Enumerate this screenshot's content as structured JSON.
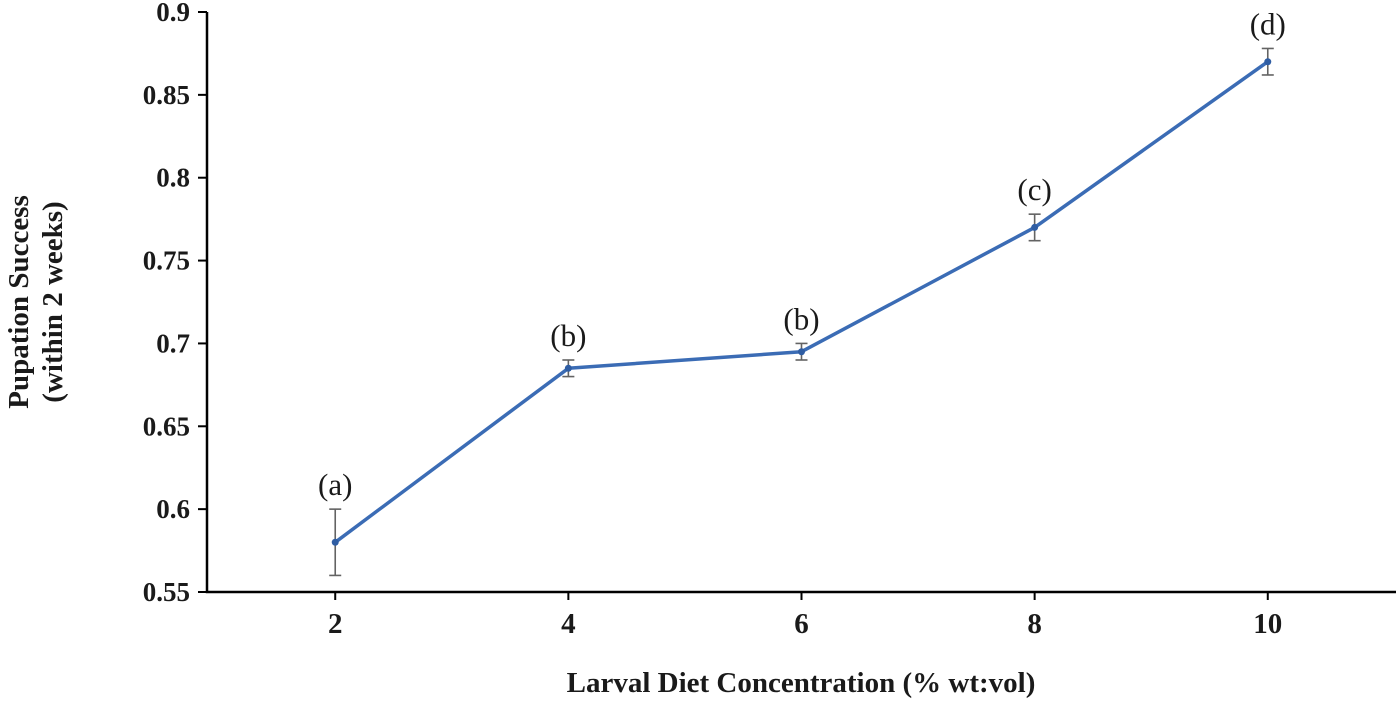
{
  "chart_data": {
    "type": "line",
    "title": "",
    "xlabel": "Larval Diet Concentration (% wt:vol)",
    "ylabel_line1": "Pupation Success",
    "ylabel_line2": "(within 2 weeks)",
    "x": [
      2,
      4,
      6,
      8,
      10
    ],
    "y": [
      0.58,
      0.685,
      0.695,
      0.77,
      0.87
    ],
    "yerr": [
      0.02,
      0.005,
      0.005,
      0.008,
      0.008
    ],
    "point_labels": [
      "(a)",
      "(b)",
      "(b)",
      "(c)",
      "(d)"
    ],
    "xlim": [
      0.9,
      11.1
    ],
    "ylim": [
      0.55,
      0.9
    ],
    "xticks": [
      2,
      4,
      6,
      8,
      10
    ],
    "xtick_labels": [
      "2",
      "4",
      "6",
      "8",
      "10"
    ],
    "yticks": [
      0.55,
      0.6,
      0.65,
      0.7,
      0.75,
      0.8,
      0.85,
      0.9
    ],
    "ytick_labels": [
      "0.55",
      "0.6",
      "0.65",
      "0.7",
      "0.75",
      "0.8",
      "0.85",
      "0.9"
    ],
    "grid": false,
    "legend": null,
    "line_color": "#3b6cb5",
    "point_color": "#2f5da3",
    "error_color": "#636363",
    "axis_color": "#000000"
  }
}
